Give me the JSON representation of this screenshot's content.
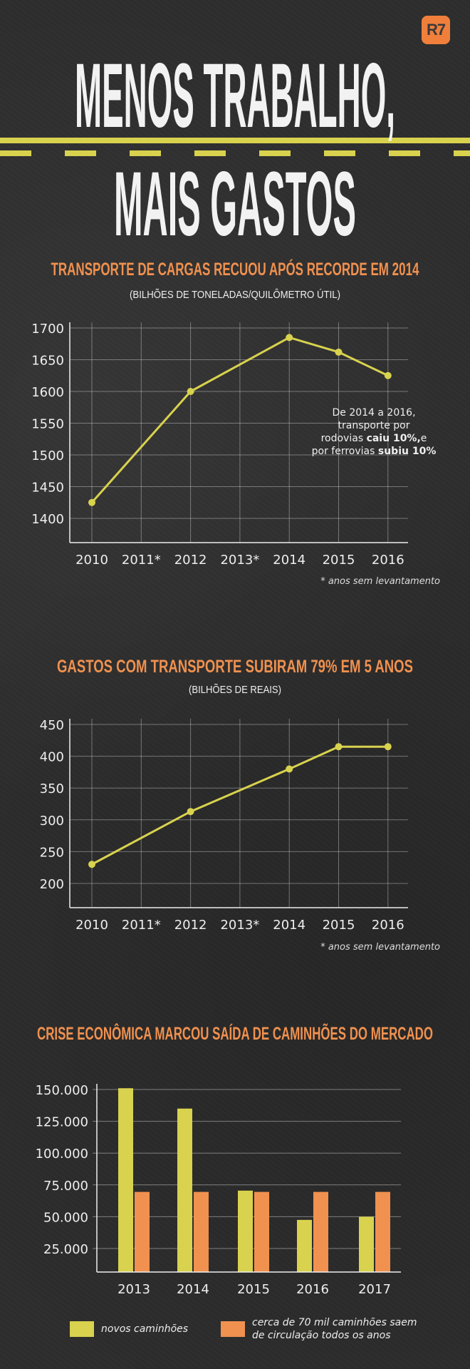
{
  "logo": "R7",
  "header": {
    "line1": "MENOS TRABALHO,",
    "line2": "MAIS GASTOS"
  },
  "colors": {
    "yellow": "#d8d24e",
    "orange": "#f0914f",
    "background": "#2d2d2d"
  },
  "chart1": {
    "title": "Transporte de cargas recuou após recorde em 2014",
    "subtitle": "(bilhões de toneladas/quilômetro útil)",
    "note_line1": "De 2014 a 2016,",
    "note_line2": "transporte por",
    "note_line3a": "rodovias ",
    "note_line3b": "caiu 10%,",
    "note_line3c": "e",
    "note_line4a": "por ferrovias ",
    "note_line4b": "subiu 10%",
    "footnote": "* anos sem levantamento"
  },
  "chart2": {
    "title": "Gastos com transporte subiram 79% em 5 anos",
    "subtitle": "(bilhões de reais)",
    "footnote": "* anos sem levantamento"
  },
  "chart3": {
    "title": "Crise econômica marcou saída de caminhões do mercado",
    "legend_new": "novos caminhões",
    "legend_out_line1": "cerca de 70 mil caminhões saem",
    "legend_out_line2": "de circulação todos os anos"
  },
  "chart_data": [
    {
      "type": "line",
      "title": "Transporte de cargas recuou após recorde em 2014",
      "ylabel": "bilhões de toneladas/quilômetro útil",
      "categories": [
        "2010",
        "2011*",
        "2012",
        "2013*",
        "2014",
        "2015",
        "2016"
      ],
      "values": [
        1425,
        null,
        1600,
        null,
        1685,
        1662,
        1625
      ],
      "yticks": [
        1400,
        1450,
        1500,
        1550,
        1600,
        1650,
        1700
      ],
      "ytick_labels": [
        "1400",
        "1450",
        "1500",
        "1550",
        "1600",
        "1650",
        "1700"
      ],
      "ylim": [
        1350,
        1700
      ],
      "grid": true
    },
    {
      "type": "line",
      "title": "Gastos com transporte subiram 79% em 5 anos",
      "ylabel": "bilhões de reais",
      "categories": [
        "2010",
        "2011*",
        "2012",
        "2013*",
        "2014",
        "2015",
        "2016"
      ],
      "values": [
        230,
        null,
        313,
        null,
        380,
        415,
        415
      ],
      "yticks": [
        200,
        250,
        300,
        350,
        400,
        450
      ],
      "ytick_labels": [
        "200",
        "250",
        "300",
        "350",
        "400",
        "450"
      ],
      "ylim": [
        160,
        450
      ],
      "grid": true
    },
    {
      "type": "bar",
      "title": "Crise econômica marcou saída de caminhões do mercado",
      "categories": [
        "2013",
        "2014",
        "2015",
        "2016",
        "2017"
      ],
      "series": [
        {
          "name": "novos caminhões",
          "values": [
            151000,
            135000,
            70500,
            47500,
            50000
          ]
        },
        {
          "name": "cerca de 70 mil caminhões saem de circulação todos os anos",
          "values": [
            69500,
            69500,
            69500,
            69500,
            69500
          ]
        }
      ],
      "yticks": [
        25000,
        50000,
        75000,
        100000,
        125000,
        150000
      ],
      "ytick_labels": [
        "25.000",
        "50.000",
        "75.000",
        "100.000",
        "125.000",
        "150.000"
      ],
      "ylim": [
        7000,
        150000
      ],
      "grid": true,
      "legend": "bottom"
    }
  ]
}
